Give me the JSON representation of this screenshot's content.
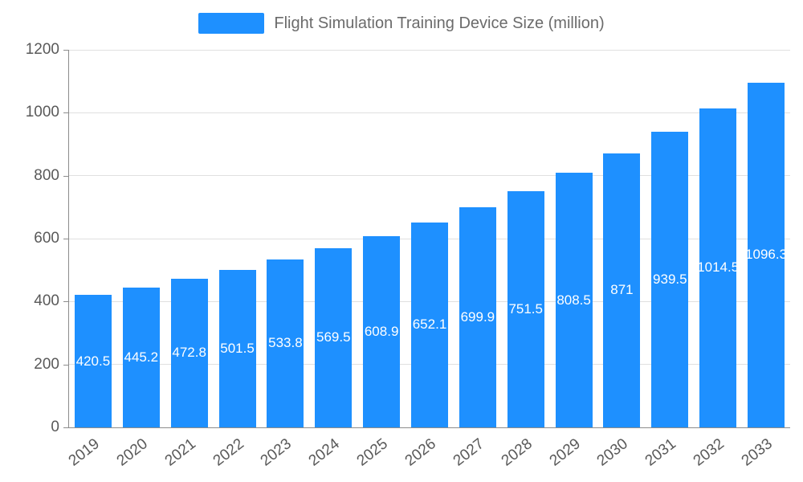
{
  "legend": {
    "label": "Flight Simulation Training Device Size (million)"
  },
  "chart_data": {
    "type": "bar",
    "title": "Flight Simulation Training Device Size (million)",
    "categories": [
      "2019",
      "2020",
      "2021",
      "2022",
      "2023",
      "2024",
      "2025",
      "2026",
      "2027",
      "2028",
      "2029",
      "2030",
      "2031",
      "2032",
      "2033"
    ],
    "values": [
      420.5,
      445.2,
      472.8,
      501.5,
      533.8,
      569.5,
      608.9,
      652.1,
      699.9,
      751.5,
      808.5,
      871,
      939.5,
      1014.5,
      1096.3
    ],
    "bar_labels": [
      "420.5",
      "445.2",
      "472.8",
      "501.5",
      "533.8",
      "569.5",
      "608.9",
      "652.1",
      "699.9",
      "751.5",
      "808.5",
      "871",
      "939.5",
      "1014.5",
      "1096.3"
    ],
    "xlabel": "",
    "ylabel": "",
    "ylim": [
      0,
      1200
    ],
    "yticks": [
      0,
      200,
      400,
      600,
      800,
      1000,
      1200
    ],
    "grid": true,
    "legend_position": "top-center",
    "colors": {
      "bar": "#1e90ff",
      "bar_label_text": "#ffffff",
      "axis_text": "#595959",
      "legend_text": "#6b6b6b",
      "gridline": "#e0e0e0",
      "axis_line": "#8c8c8c",
      "background": "#ffffff"
    }
  }
}
